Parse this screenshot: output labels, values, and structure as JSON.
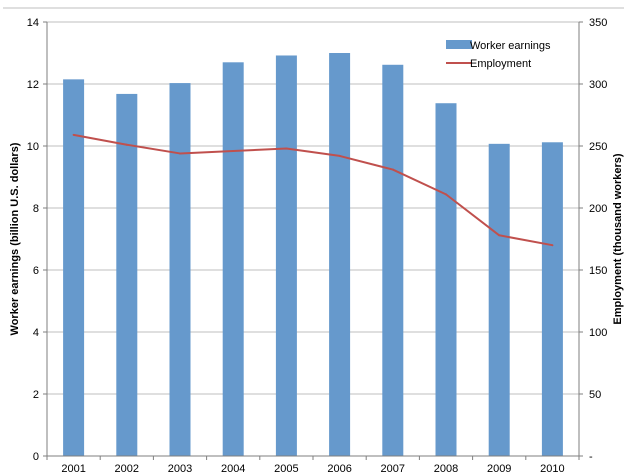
{
  "chart_data": {
    "type": "bar",
    "categories": [
      "2001",
      "2002",
      "2003",
      "2004",
      "2005",
      "2006",
      "2007",
      "2008",
      "2009",
      "2010"
    ],
    "series": [
      {
        "name": "Worker earnings",
        "type": "bar",
        "axis": "left",
        "color": "#6699cc",
        "values": [
          12.15,
          11.68,
          12.03,
          12.7,
          12.92,
          13.0,
          12.62,
          11.38,
          10.07,
          10.12
        ]
      },
      {
        "name": "Employment",
        "type": "line",
        "axis": "right",
        "color": "#c0504d",
        "values": [
          259,
          251,
          244,
          246,
          248,
          242,
          231,
          211,
          178,
          170
        ]
      }
    ],
    "ylabel": "Worker earnings (billion U.S. dollars)",
    "y2label": "Employment (thousand workers)",
    "ylim": [
      0,
      14
    ],
    "y2lim": [
      0,
      350
    ],
    "yticks": [
      "0",
      "2",
      "4",
      "6",
      "8",
      "10",
      "12",
      "14"
    ],
    "y2ticks": [
      "-",
      "50",
      "100",
      "150",
      "200",
      "250",
      "300",
      "350"
    ],
    "grid": true,
    "legend": "top-right"
  }
}
